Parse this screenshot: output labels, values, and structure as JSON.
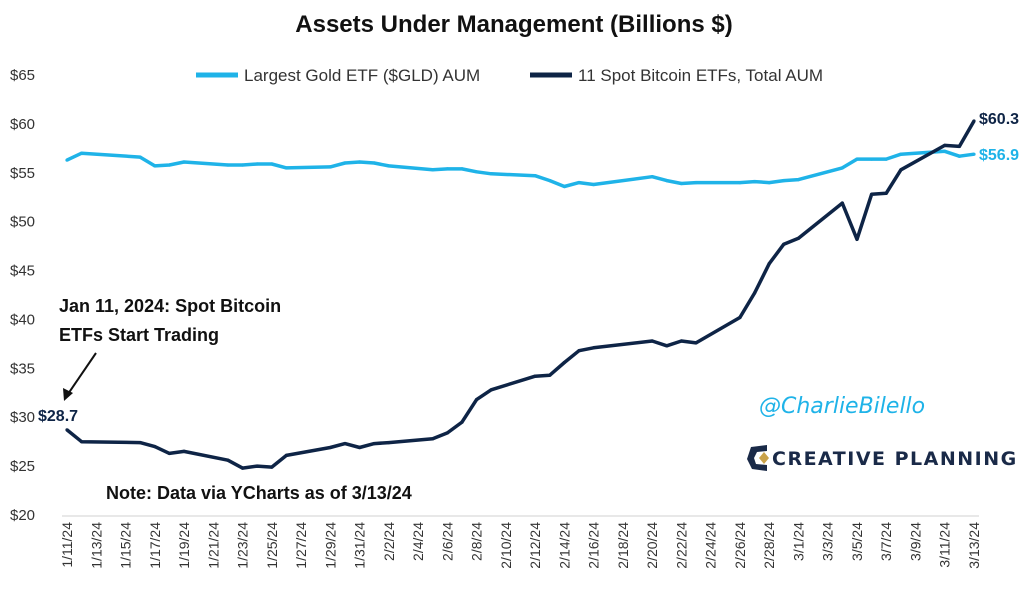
{
  "chart_data": {
    "type": "line",
    "title": "Assets Under Management (Billions $)",
    "xlabel": "",
    "ylabel": "",
    "ylim": [
      20,
      65
    ],
    "yticks": [
      "$20",
      "$25",
      "$30",
      "$35",
      "$40",
      "$45",
      "$50",
      "$55",
      "$60",
      "$65"
    ],
    "ytick_values": [
      20,
      25,
      30,
      35,
      40,
      45,
      50,
      55,
      60,
      65
    ],
    "xticks": [
      "1/11/24",
      "1/13/24",
      "1/15/24",
      "1/17/24",
      "1/19/24",
      "1/21/24",
      "1/23/24",
      "1/25/24",
      "1/27/24",
      "1/29/24",
      "1/31/24",
      "2/2/24",
      "2/4/24",
      "2/6/24",
      "2/8/24",
      "2/10/24",
      "2/12/24",
      "2/14/24",
      "2/16/24",
      "2/18/24",
      "2/20/24",
      "2/22/24",
      "2/24/24",
      "2/26/24",
      "2/28/24",
      "3/1/24",
      "3/3/24",
      "3/5/24",
      "3/7/24",
      "3/9/24",
      "3/11/24",
      "3/13/24"
    ],
    "grid": false,
    "legend_position": "top",
    "series": [
      {
        "name": "Largest Gold ETF ($GLD) AUM",
        "color": "#1fb3e8",
        "x": [
          "2024-01-11",
          "2024-01-12",
          "2024-01-16",
          "2024-01-17",
          "2024-01-18",
          "2024-01-19",
          "2024-01-22",
          "2024-01-23",
          "2024-01-24",
          "2024-01-25",
          "2024-01-26",
          "2024-01-29",
          "2024-01-30",
          "2024-01-31",
          "2024-02-01",
          "2024-02-02",
          "2024-02-05",
          "2024-02-06",
          "2024-02-07",
          "2024-02-08",
          "2024-02-09",
          "2024-02-12",
          "2024-02-13",
          "2024-02-14",
          "2024-02-15",
          "2024-02-16",
          "2024-02-20",
          "2024-02-21",
          "2024-02-22",
          "2024-02-23",
          "2024-02-26",
          "2024-02-27",
          "2024-02-28",
          "2024-02-29",
          "2024-03-01",
          "2024-03-04",
          "2024-03-05",
          "2024-03-06",
          "2024-03-07",
          "2024-03-08",
          "2024-03-11",
          "2024-03-12",
          "2024-03-13"
        ],
        "values": [
          56.3,
          57.0,
          56.6,
          55.7,
          55.8,
          56.1,
          55.8,
          55.8,
          55.9,
          55.9,
          55.5,
          55.6,
          56.0,
          56.1,
          56.0,
          55.7,
          55.3,
          55.4,
          55.4,
          55.1,
          54.9,
          54.7,
          54.2,
          53.6,
          54.0,
          53.8,
          54.6,
          54.2,
          53.9,
          54.0,
          54.0,
          54.1,
          54.0,
          54.2,
          54.3,
          55.5,
          56.4,
          56.4,
          56.4,
          56.9,
          57.2,
          56.7,
          56.9
        ]
      },
      {
        "name": "11 Spot Bitcoin ETFs, Total AUM",
        "color": "#0e2446",
        "x": [
          "2024-01-11",
          "2024-01-12",
          "2024-01-16",
          "2024-01-17",
          "2024-01-18",
          "2024-01-19",
          "2024-01-22",
          "2024-01-23",
          "2024-01-24",
          "2024-01-25",
          "2024-01-26",
          "2024-01-29",
          "2024-01-30",
          "2024-01-31",
          "2024-02-01",
          "2024-02-02",
          "2024-02-05",
          "2024-02-06",
          "2024-02-07",
          "2024-02-08",
          "2024-02-09",
          "2024-02-12",
          "2024-02-13",
          "2024-02-14",
          "2024-02-15",
          "2024-02-16",
          "2024-02-20",
          "2024-02-21",
          "2024-02-22",
          "2024-02-23",
          "2024-02-26",
          "2024-02-27",
          "2024-02-28",
          "2024-02-29",
          "2024-03-01",
          "2024-03-04",
          "2024-03-05",
          "2024-03-06",
          "2024-03-07",
          "2024-03-08",
          "2024-03-11",
          "2024-03-12",
          "2024-03-13"
        ],
        "values": [
          28.7,
          27.5,
          27.4,
          27.0,
          26.3,
          26.5,
          25.6,
          24.8,
          25.0,
          24.9,
          26.1,
          26.9,
          27.3,
          26.9,
          27.3,
          27.4,
          27.8,
          28.4,
          29.5,
          31.8,
          32.8,
          34.2,
          34.3,
          35.6,
          36.8,
          37.1,
          37.8,
          37.3,
          37.8,
          37.6,
          40.2,
          42.7,
          45.7,
          47.7,
          48.3,
          51.9,
          48.2,
          52.8,
          52.9,
          55.3,
          57.8,
          57.7,
          60.3
        ]
      }
    ],
    "annotations": {
      "start_note_line1": "Jan 11, 2024: Spot Bitcoin",
      "start_note_line2": "ETFs Start Trading",
      "start_value_label": "$28.7",
      "bitcoin_end_label": "$60.3",
      "gold_end_label": "$56.9",
      "source_note": "Note: Data via YCharts as of 3/13/24",
      "handle": "@CharlieBilello",
      "brand": "CREATIVE PLANNING"
    }
  }
}
